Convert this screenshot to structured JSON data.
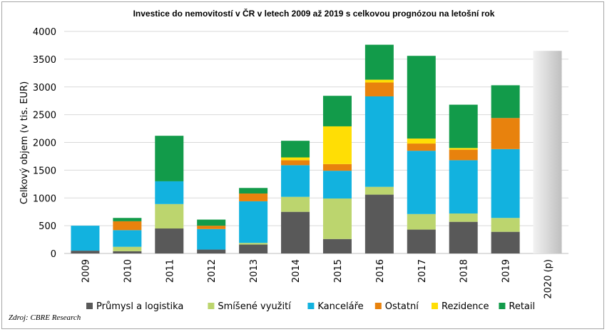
{
  "chart_data": {
    "type": "bar",
    "stacked": true,
    "title": "Investice do nemovitostí v ČR v letech 2009 až 2019 s celkovou prognózou na letošní rok",
    "xlabel": "",
    "ylabel": "Celkový objem (v tis. EUR)",
    "ylim": [
      0,
      4000
    ],
    "yticks": [
      "0",
      "500",
      "1000",
      "1500",
      "2000",
      "2500",
      "3000",
      "3500",
      "4000"
    ],
    "grid": true,
    "legend": "bottom",
    "categories": [
      "2009",
      "2010",
      "2011",
      "2012",
      "2013",
      "2014",
      "2015",
      "2016",
      "2017",
      "2018",
      "2019",
      "2020 (p)"
    ],
    "series": [
      {
        "name": "Průmysl a logistika",
        "color": "#595959",
        "values": [
          50,
          40,
          450,
          70,
          160,
          750,
          260,
          1060,
          430,
          570,
          390,
          null
        ]
      },
      {
        "name": "Smíšené využití",
        "color": "#bcd56e",
        "values": [
          0,
          80,
          440,
          0,
          30,
          270,
          730,
          140,
          280,
          150,
          250,
          null
        ]
      },
      {
        "name": "Kanceláře",
        "color": "#12b2df",
        "values": [
          450,
          300,
          410,
          370,
          750,
          570,
          500,
          1630,
          1140,
          960,
          1240,
          null
        ]
      },
      {
        "name": "Ostatní",
        "color": "#e8820d",
        "values": [
          0,
          160,
          0,
          60,
          140,
          90,
          120,
          250,
          130,
          190,
          560,
          null
        ]
      },
      {
        "name": "Rezidence",
        "color": "#ffde05",
        "values": [
          0,
          0,
          0,
          0,
          0,
          50,
          680,
          50,
          90,
          30,
          0,
          null
        ]
      },
      {
        "name": "Retail",
        "color": "#129b4a",
        "values": [
          0,
          60,
          820,
          110,
          100,
          300,
          550,
          630,
          1490,
          780,
          590,
          null
        ]
      }
    ],
    "forecast": {
      "category": "2020 (p)",
      "total": 3650,
      "color": "#d9d9d9"
    }
  },
  "source": "Zdroj: CBRE Research"
}
